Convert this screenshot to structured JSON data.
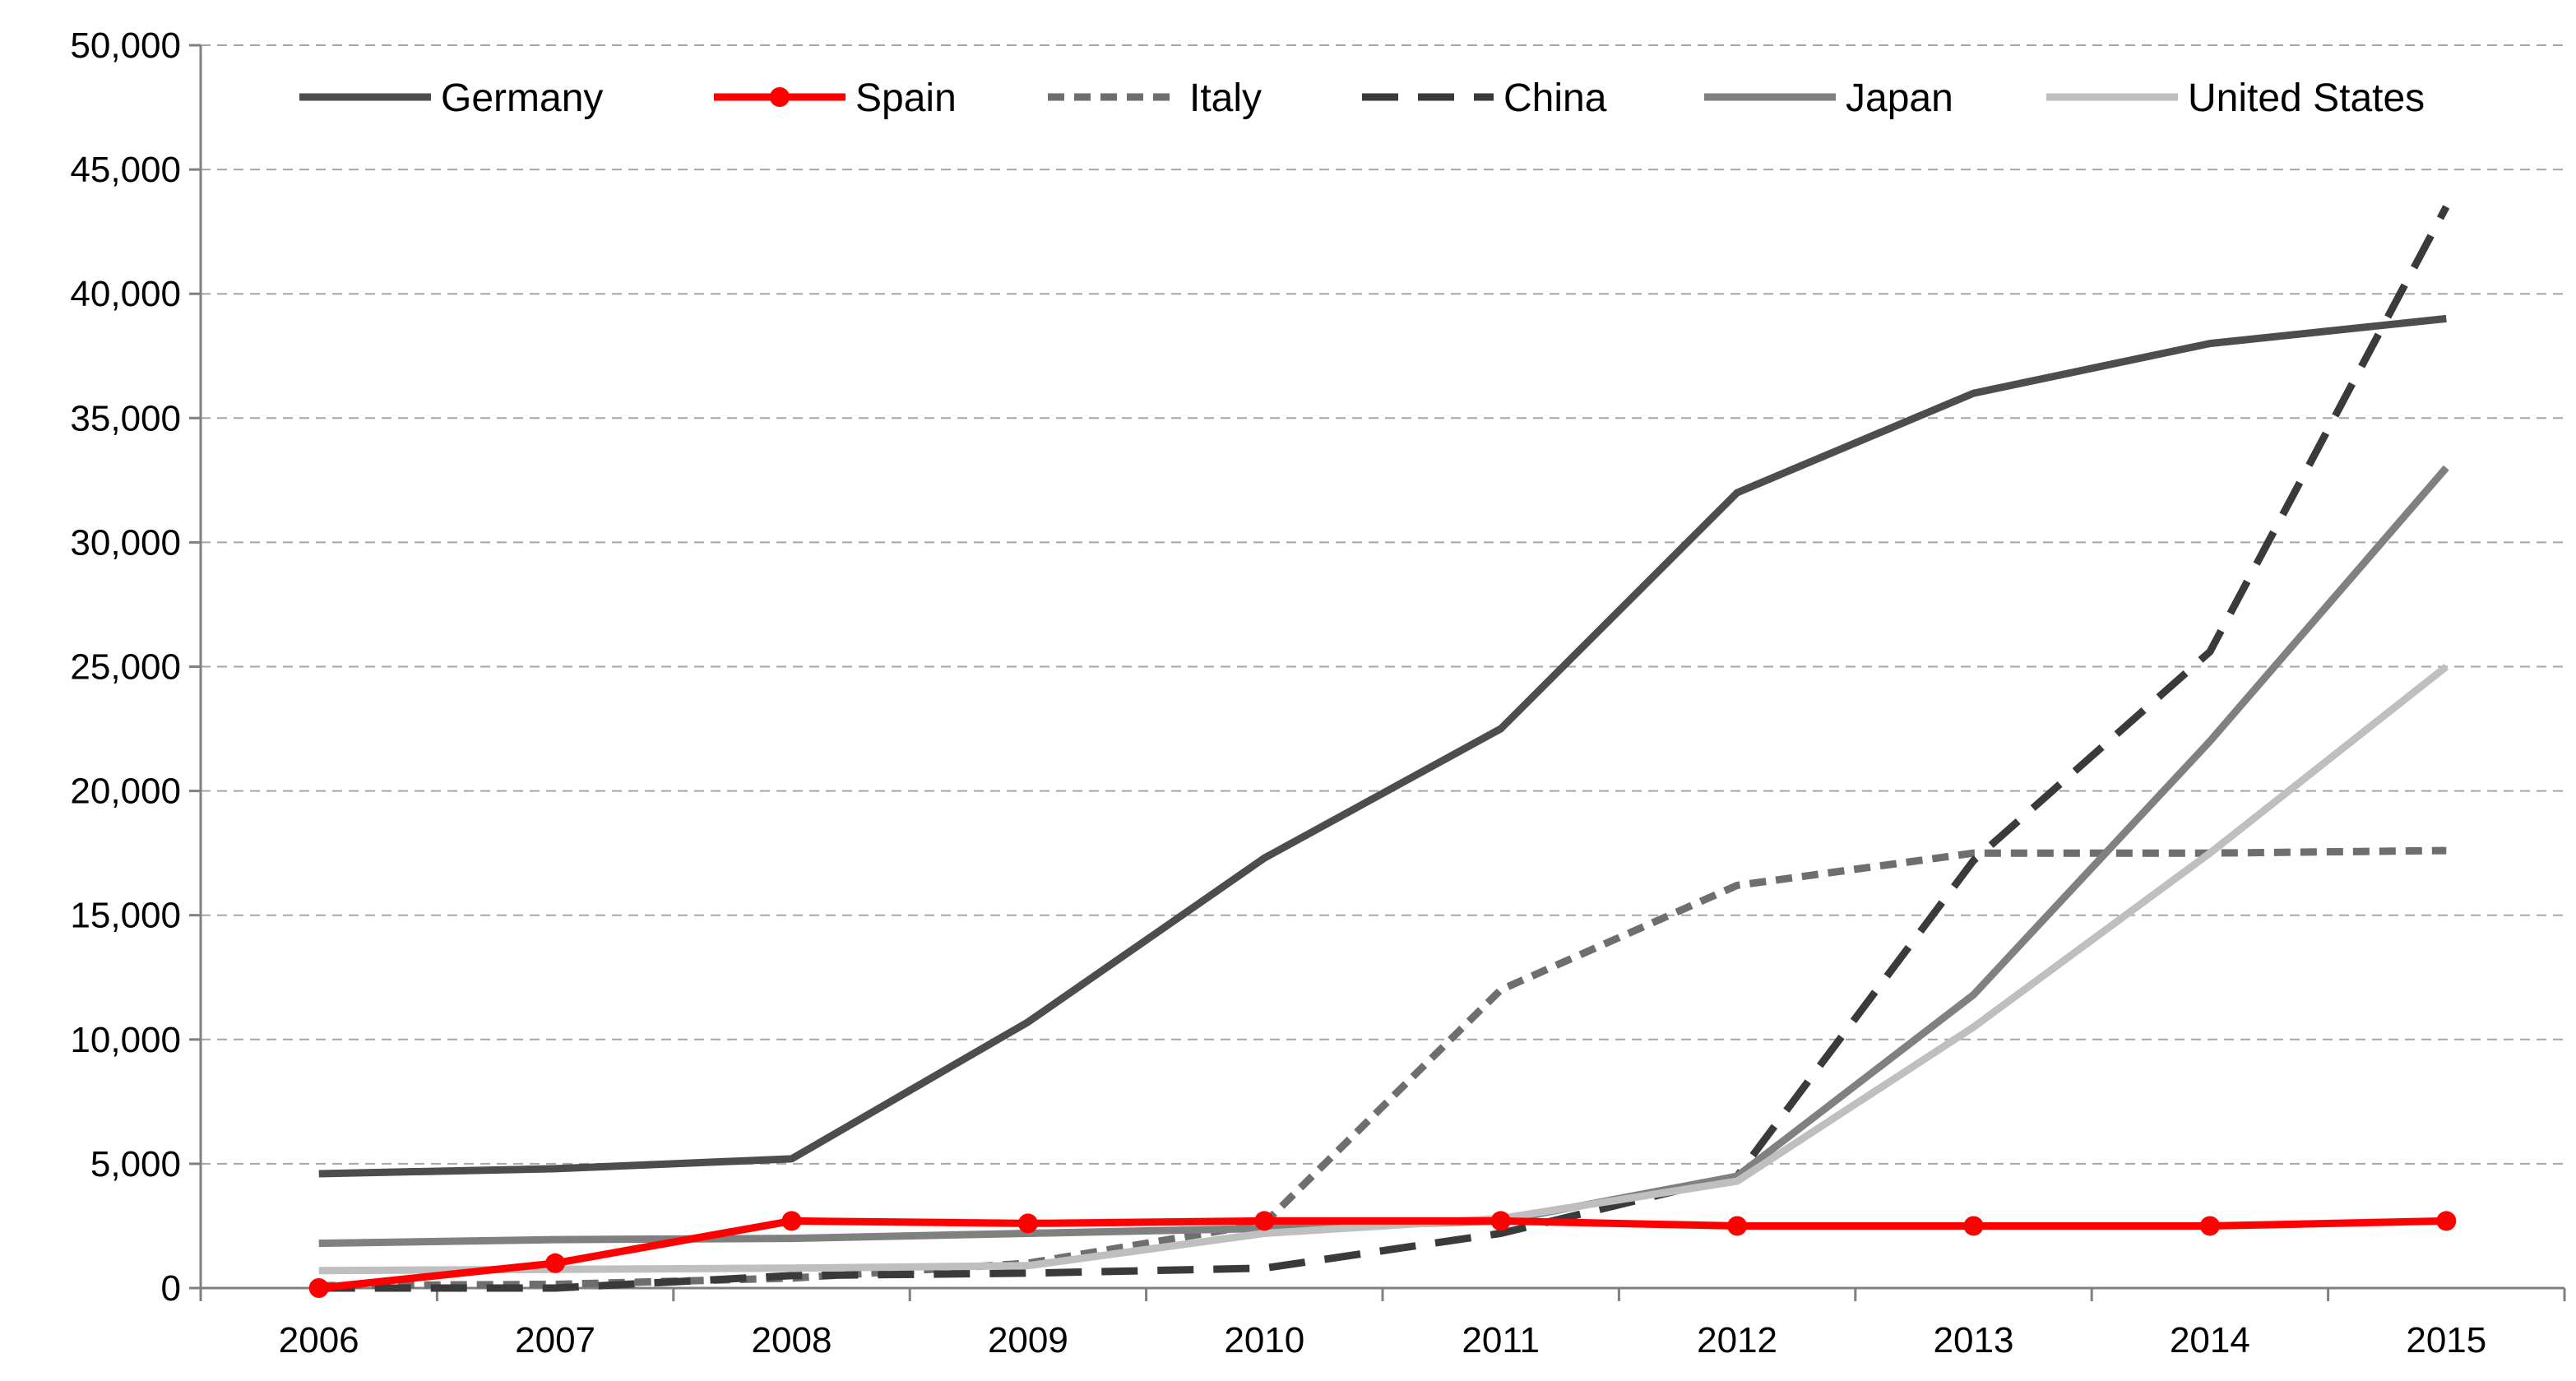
{
  "chart_data": {
    "type": "line",
    "title": "",
    "xlabel": "",
    "ylabel": "",
    "categories": [
      "2006",
      "2007",
      "2008",
      "2009",
      "2010",
      "2011",
      "2012",
      "2013",
      "2014",
      "2015"
    ],
    "ylim": [
      0,
      50000
    ],
    "yticks": [
      0,
      5000,
      10000,
      15000,
      20000,
      25000,
      30000,
      35000,
      40000,
      45000,
      50000
    ],
    "ytick_labels": [
      "0",
      "5,000",
      "10,000",
      "15,000",
      "20,000",
      "25,000",
      "30,000",
      "35,000",
      "40,000",
      "45,000",
      "50,000"
    ],
    "grid": true,
    "legend_position": "top",
    "series": [
      {
        "name": "Germany",
        "color": "#4d4d4d",
        "dash": "solid",
        "markers": false,
        "values": [
          4600,
          4800,
          5200,
          10700,
          17300,
          22500,
          32000,
          36000,
          38000,
          39000
        ]
      },
      {
        "name": "Spain",
        "color": "#ff0000",
        "dash": "solid",
        "markers": true,
        "values": [
          0,
          1000,
          2700,
          2600,
          2700,
          2700,
          2500,
          2500,
          2500,
          2700
        ]
      },
      {
        "name": "Italy",
        "color": "#6e6e6e",
        "dash": "dashed",
        "markers": false,
        "values": [
          100,
          150,
          400,
          1000,
          2600,
          12000,
          16200,
          17500,
          17500,
          17600
        ]
      },
      {
        "name": "China",
        "color": "#3a3a3a",
        "dash": "longdash",
        "markers": false,
        "values": [
          0,
          0,
          500,
          600,
          800,
          2200,
          4500,
          17200,
          25600,
          43500
        ]
      },
      {
        "name": "Japan",
        "color": "#808080",
        "dash": "solid",
        "markers": false,
        "values": [
          1800,
          1950,
          2000,
          2200,
          2400,
          2700,
          4500,
          11800,
          22000,
          33000
        ]
      },
      {
        "name": "United States",
        "color": "#bfbfbf",
        "dash": "solid",
        "markers": false,
        "values": [
          700,
          750,
          800,
          900,
          2200,
          2800,
          4300,
          10500,
          17500,
          25000
        ]
      }
    ]
  }
}
